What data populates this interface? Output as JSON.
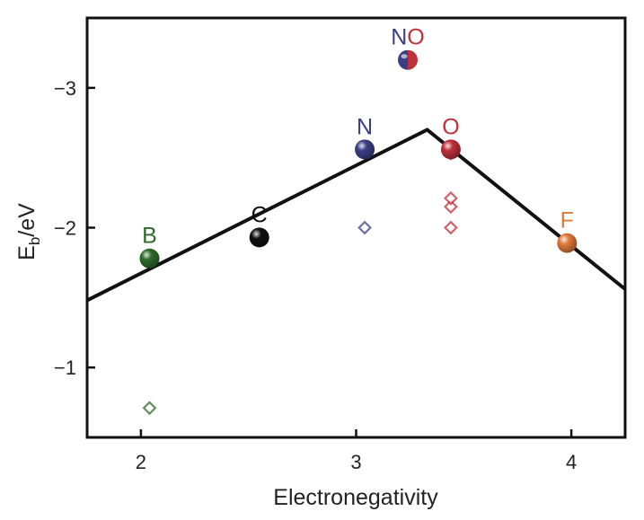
{
  "colors": {
    "B": "#2e6b2b",
    "C": "#111111",
    "N": "#3b3f85",
    "O": "#c0303a",
    "F": "#e07a3a",
    "frame": "#111111",
    "trend_line": "#111111"
  },
  "chart_data": {
    "type": "scatter",
    "title": "",
    "xlabel": "Electronegativity",
    "ylabel": {
      "base": "E",
      "sub": "b",
      "rest": "/eV"
    },
    "xlim": [
      1.75,
      4.25
    ],
    "ylim": [
      -0.5,
      -3.5
    ],
    "y_axis_inverted": true,
    "grid": false,
    "legend": "none",
    "xticks": [
      2,
      3,
      4
    ],
    "yticks": [
      -1,
      -2,
      -3
    ],
    "xtick_labels": [
      "2",
      "3",
      "4"
    ],
    "ytick_labels": [
      "−1",
      "−2",
      "−3"
    ],
    "series": [
      {
        "marker": "filled-sphere",
        "points": [
          {
            "x": 2.04,
            "y": -1.78,
            "label": "B",
            "color_key": "B"
          },
          {
            "x": 2.55,
            "y": -1.93,
            "label": "C",
            "color_key": "C"
          },
          {
            "x": 3.04,
            "y": -2.56,
            "label": "N",
            "color_key": "N"
          },
          {
            "x": 3.44,
            "y": -2.56,
            "label": "O",
            "color_key": "O"
          },
          {
            "x": 3.98,
            "y": -1.89,
            "label": "F",
            "color_key": "F"
          }
        ]
      },
      {
        "marker": "half-filled-sphere",
        "points": [
          {
            "x": 3.24,
            "y": -3.2,
            "label_parts": [
              {
                "text": "N",
                "color_key": "N"
              },
              {
                "text": "O",
                "color_key": "O"
              }
            ],
            "left_color_key": "N",
            "right_color_key": "O"
          }
        ]
      },
      {
        "marker": "open-diamond",
        "points": [
          {
            "x": 2.04,
            "y": -0.71,
            "color_key": "B"
          },
          {
            "x": 3.04,
            "y": -2.0,
            "color_key": "N"
          },
          {
            "x": 3.44,
            "y": -2.0,
            "color_key": "O"
          },
          {
            "x": 3.44,
            "y": -2.15,
            "color_key": "O"
          },
          {
            "x": 3.44,
            "y": -2.21,
            "color_key": "O"
          },
          {
            "x": 3.44,
            "y": -2.53,
            "color_key": "O"
          }
        ]
      }
    ],
    "trend_line": {
      "x": [
        1.75,
        3.33,
        4.25
      ],
      "y": [
        -1.48,
        -2.7,
        -1.56
      ]
    }
  }
}
